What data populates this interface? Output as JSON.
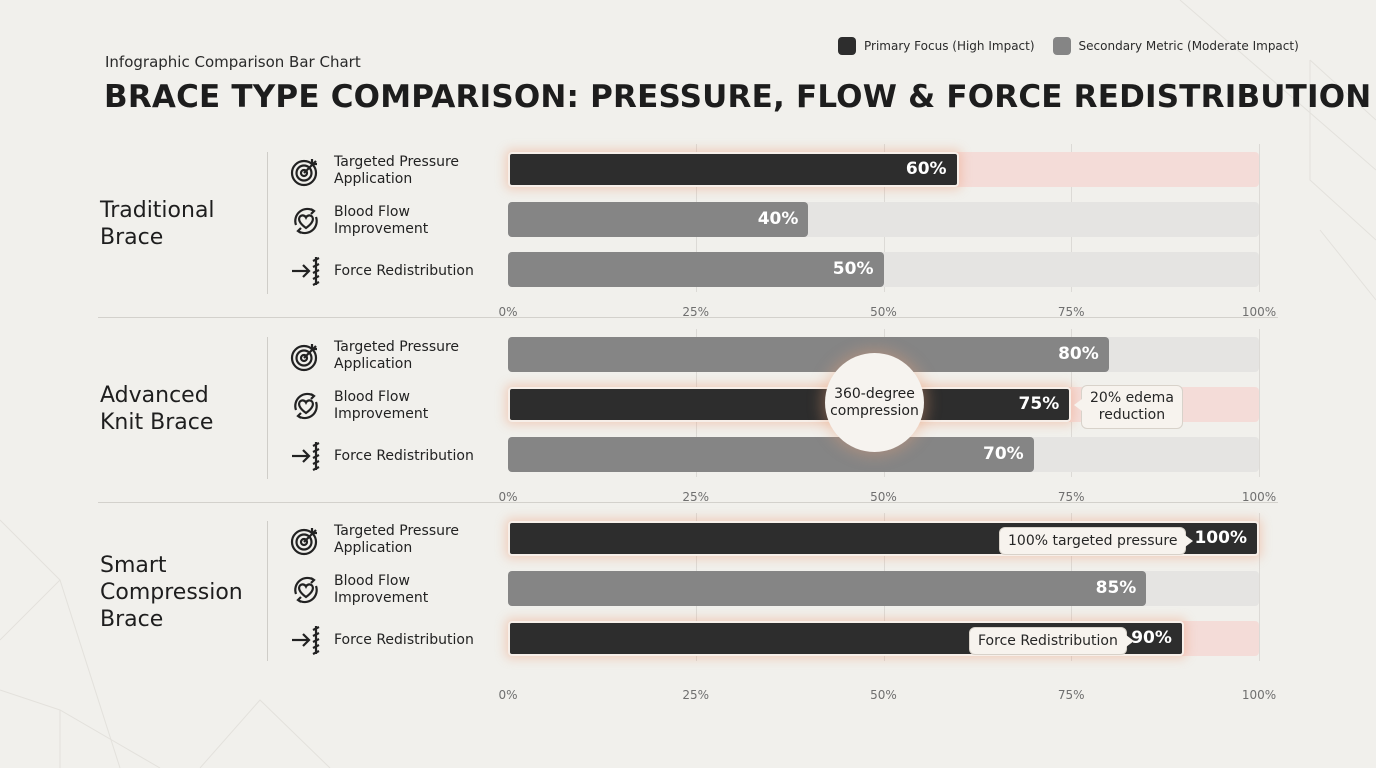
{
  "header": {
    "subtitle": "Infographic Comparison Bar Chart",
    "title": "BRACE TYPE COMPARISON: PRESSURE, FLOW & FORCE REDISTRIBUTION"
  },
  "legend": [
    {
      "label": "Primary Focus (High Impact)",
      "color": "#2d2d2d"
    },
    {
      "label": "Secondary Metric (Moderate Impact)",
      "color": "#858585"
    }
  ],
  "metric_icons": [
    "target-icon",
    "heart-cycle-icon",
    "force-arrow-icon"
  ],
  "chart_data": {
    "type": "bar",
    "orientation": "horizontal",
    "title": "BRACE TYPE COMPARISON: PRESSURE, FLOW & FORCE REDISTRIBUTION",
    "xlim": [
      0,
      100
    ],
    "tick_labels": [
      "0%",
      "25%",
      "50%",
      "75%",
      "100%"
    ],
    "groups": [
      {
        "name": "Traditional\nBrace",
        "metrics": [
          {
            "label": "Targeted Pressure\nApplication",
            "value": 60,
            "display": "60%",
            "emphasis": "primary"
          },
          {
            "label": "Blood Flow\nImprovement",
            "value": 40,
            "display": "40%",
            "emphasis": "secondary"
          },
          {
            "label": "Force Redistribution",
            "value": 50,
            "display": "50%",
            "emphasis": "secondary"
          }
        ]
      },
      {
        "name": "Advanced\nKnit Brace",
        "metrics": [
          {
            "label": "Targeted Pressure\nApplication",
            "value": 80,
            "display": "80%",
            "emphasis": "secondary"
          },
          {
            "label": "Blood Flow\nImprovement",
            "value": 75,
            "display": "75%",
            "emphasis": "primary"
          },
          {
            "label": "Force Redistribution",
            "value": 70,
            "display": "70%",
            "emphasis": "secondary"
          }
        ]
      },
      {
        "name": "Smart\nCompression\nBrace",
        "metrics": [
          {
            "label": "Targeted Pressure\nApplication",
            "value": 100,
            "display": "100%",
            "emphasis": "primary"
          },
          {
            "label": "Blood Flow\nImprovement",
            "value": 85,
            "display": "85%",
            "emphasis": "secondary"
          },
          {
            "label": "Force Redistribution",
            "value": 90,
            "display": "90%",
            "emphasis": "primary"
          }
        ]
      }
    ],
    "annotations": {
      "circle": "360-degree\ncompression",
      "edema": "20% edema\nreduction",
      "targeted": "100% targeted pressure",
      "force": "Force Redistribution"
    }
  }
}
